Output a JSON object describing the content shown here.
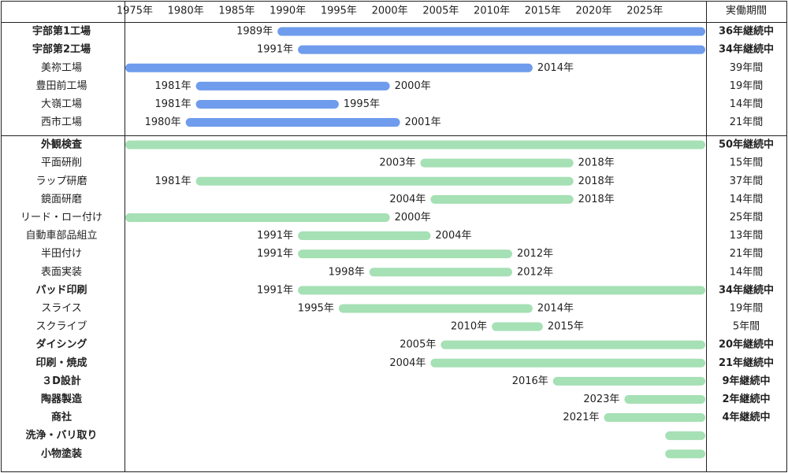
{
  "chart_data": {
    "type": "gantt",
    "year_min": 1974,
    "year_max": 2031,
    "x_ticks": [
      {
        "year": 1975,
        "label": "1975年"
      },
      {
        "year": 1980,
        "label": "1980年"
      },
      {
        "year": 1985,
        "label": "1985年"
      },
      {
        "year": 1990,
        "label": "1990年"
      },
      {
        "year": 1995,
        "label": "1995年"
      },
      {
        "year": 2000,
        "label": "2000年"
      },
      {
        "year": 2005,
        "label": "2005年"
      },
      {
        "year": 2010,
        "label": "2010年"
      },
      {
        "year": 2015,
        "label": "2015年"
      },
      {
        "year": 2020,
        "label": "2020年"
      },
      {
        "year": 2025,
        "label": "2025年"
      }
    ],
    "duration_header": "実働期間",
    "colors": {
      "factory": "#6f9cec",
      "business": "#a6e0b5",
      "grid": "#222222"
    },
    "groups": [
      {
        "name": "factories",
        "rows": [
          {
            "label": "宇部第1工場",
            "bold": true,
            "start": 1989,
            "end": 2031,
            "start_label": "1989年",
            "end_label": "",
            "duration": "36年継続中"
          },
          {
            "label": "宇部第2工場",
            "bold": true,
            "start": 1991,
            "end": 2031,
            "start_label": "1991年",
            "end_label": "",
            "duration": "34年継続中"
          },
          {
            "label": "美祢工場",
            "bold": false,
            "start": 1974,
            "end": 2014,
            "start_label": "",
            "end_label": "2014年",
            "duration": "39年間"
          },
          {
            "label": "豊田前工場",
            "bold": false,
            "start": 1981,
            "end": 2000,
            "start_label": "1981年",
            "end_label": "2000年",
            "duration": "19年間"
          },
          {
            "label": "大嶺工場",
            "bold": false,
            "start": 1981,
            "end": 1995,
            "start_label": "1981年",
            "end_label": "1995年",
            "duration": "14年間"
          },
          {
            "label": "西市工場",
            "bold": false,
            "start": 1980,
            "end": 2001,
            "start_label": "1980年",
            "end_label": "2001年",
            "duration": "21年間"
          }
        ]
      },
      {
        "name": "businesses",
        "rows": [
          {
            "label": "外観検査",
            "bold": true,
            "start": 1974,
            "end": 2031,
            "start_label": "",
            "end_label": "",
            "duration": "50年継続中"
          },
          {
            "label": "平面研削",
            "bold": false,
            "start": 2003,
            "end": 2018,
            "start_label": "2003年",
            "end_label": "2018年",
            "duration": "15年間"
          },
          {
            "label": "ラップ研磨",
            "bold": false,
            "start": 1981,
            "end": 2018,
            "start_label": "1981年",
            "end_label": "2018年",
            "duration": "37年間"
          },
          {
            "label": "鏡面研磨",
            "bold": false,
            "start": 2004,
            "end": 2018,
            "start_label": "2004年",
            "end_label": "2018年",
            "duration": "14年間"
          },
          {
            "label": "リード・ロー付け",
            "bold": false,
            "start": 1974,
            "end": 2000,
            "start_label": "",
            "end_label": "2000年",
            "duration": "25年間"
          },
          {
            "label": "自動車部品組立",
            "bold": false,
            "start": 1991,
            "end": 2004,
            "start_label": "1991年",
            "end_label": "2004年",
            "duration": "13年間"
          },
          {
            "label": "半田付け",
            "bold": false,
            "start": 1991,
            "end": 2012,
            "start_label": "1991年",
            "end_label": "2012年",
            "duration": "21年間"
          },
          {
            "label": "表面実装",
            "bold": false,
            "start": 1998,
            "end": 2012,
            "start_label": "1998年",
            "end_label": "2012年",
            "duration": "14年間"
          },
          {
            "label": "パッド印刷",
            "bold": true,
            "start": 1991,
            "end": 2031,
            "start_label": "1991年",
            "end_label": "",
            "duration": "34年継続中"
          },
          {
            "label": "スライス",
            "bold": false,
            "start": 1995,
            "end": 2014,
            "start_label": "1995年",
            "end_label": "2014年",
            "duration": "19年間"
          },
          {
            "label": "スクライブ",
            "bold": false,
            "start": 2010,
            "end": 2015,
            "start_label": "2010年",
            "end_label": "2015年",
            "duration": "5年間"
          },
          {
            "label": "ダイシング",
            "bold": true,
            "start": 2005,
            "end": 2031,
            "start_label": "2005年",
            "end_label": "",
            "duration": "20年継続中"
          },
          {
            "label": "印刷・焼成",
            "bold": true,
            "start": 2004,
            "end": 2031,
            "start_label": "2004年",
            "end_label": "",
            "duration": "21年継続中"
          },
          {
            "label": "３D設計",
            "bold": true,
            "start": 2016,
            "end": 2031,
            "start_label": "2016年",
            "end_label": "",
            "duration": "9年継続中"
          },
          {
            "label": "陶器製造",
            "bold": true,
            "start": 2023,
            "end": 2031,
            "start_label": "2023年",
            "end_label": "",
            "duration": "2年継続中"
          },
          {
            "label": "商社",
            "bold": true,
            "start": 2021,
            "end": 2031,
            "start_label": "2021年",
            "end_label": "",
            "duration": "4年継続中"
          },
          {
            "label": "洗浄・バリ取り",
            "bold": true,
            "start": 2027,
            "end": 2031,
            "start_label": "",
            "end_label": "",
            "duration": ""
          },
          {
            "label": "小物塗装",
            "bold": true,
            "start": 2027,
            "end": 2031,
            "start_label": "",
            "end_label": "",
            "duration": ""
          }
        ]
      }
    ]
  }
}
